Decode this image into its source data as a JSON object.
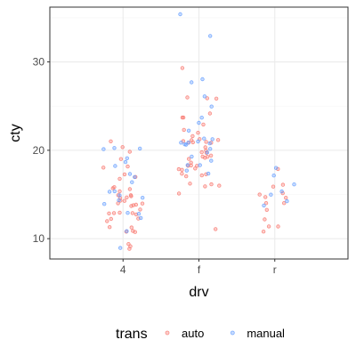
{
  "chart_data": {
    "type": "scatter",
    "jitter": true,
    "xlabel": "drv",
    "ylabel": "cty",
    "categories": [
      "4",
      "f",
      "r"
    ],
    "ylim": [
      7.7,
      36.2
    ],
    "yticks": [
      10,
      20,
      30
    ],
    "grid": true,
    "legend": {
      "title": "trans",
      "placement": "bottom"
    },
    "series": [
      {
        "name": "auto",
        "color": "#F8766D",
        "points": [
          {
            "x": "4",
            "y": 9
          },
          {
            "x": "4",
            "y": 9
          },
          {
            "x": "4",
            "y": 9
          },
          {
            "x": "4",
            "y": 11
          },
          {
            "x": "4",
            "y": 11
          },
          {
            "x": "4",
            "y": 11
          },
          {
            "x": "4",
            "y": 11
          },
          {
            "x": "4",
            "y": 11
          },
          {
            "x": "4",
            "y": 12
          },
          {
            "x": "4",
            "y": 12
          },
          {
            "x": "4",
            "y": 12
          },
          {
            "x": "4",
            "y": 13
          },
          {
            "x": "4",
            "y": 13
          },
          {
            "x": "4",
            "y": 13
          },
          {
            "x": "4",
            "y": 13
          },
          {
            "x": "4",
            "y": 13
          },
          {
            "x": "4",
            "y": 13
          },
          {
            "x": "4",
            "y": 14
          },
          {
            "x": "4",
            "y": 14
          },
          {
            "x": "4",
            "y": 14
          },
          {
            "x": "4",
            "y": 14
          },
          {
            "x": "4",
            "y": 14
          },
          {
            "x": "4",
            "y": 14
          },
          {
            "x": "4",
            "y": 14
          },
          {
            "x": "4",
            "y": 15
          },
          {
            "x": "4",
            "y": 15
          },
          {
            "x": "4",
            "y": 15
          },
          {
            "x": "4",
            "y": 15
          },
          {
            "x": "4",
            "y": 15
          },
          {
            "x": "4",
            "y": 15
          },
          {
            "x": "4",
            "y": 16
          },
          {
            "x": "4",
            "y": 16
          },
          {
            "x": "4",
            "y": 16
          },
          {
            "x": "4",
            "y": 17
          },
          {
            "x": "4",
            "y": 17
          },
          {
            "x": "4",
            "y": 17
          },
          {
            "x": "4",
            "y": 18
          },
          {
            "x": "4",
            "y": 18
          },
          {
            "x": "4",
            "y": 19
          },
          {
            "x": "4",
            "y": 20
          },
          {
            "x": "4",
            "y": 20
          },
          {
            "x": "4",
            "y": 21
          },
          {
            "x": "f",
            "y": 11
          },
          {
            "x": "f",
            "y": 15
          },
          {
            "x": "f",
            "y": 16
          },
          {
            "x": "f",
            "y": 16
          },
          {
            "x": "f",
            "y": 16
          },
          {
            "x": "f",
            "y": 16
          },
          {
            "x": "f",
            "y": 17
          },
          {
            "x": "f",
            "y": 17
          },
          {
            "x": "f",
            "y": 17
          },
          {
            "x": "f",
            "y": 17
          },
          {
            "x": "f",
            "y": 18
          },
          {
            "x": "f",
            "y": 18
          },
          {
            "x": "f",
            "y": 18
          },
          {
            "x": "f",
            "y": 18
          },
          {
            "x": "f",
            "y": 18
          },
          {
            "x": "f",
            "y": 18
          },
          {
            "x": "f",
            "y": 19
          },
          {
            "x": "f",
            "y": 19
          },
          {
            "x": "f",
            "y": 19
          },
          {
            "x": "f",
            "y": 19
          },
          {
            "x": "f",
            "y": 19
          },
          {
            "x": "f",
            "y": 19
          },
          {
            "x": "f",
            "y": 20
          },
          {
            "x": "f",
            "y": 20
          },
          {
            "x": "f",
            "y": 20
          },
          {
            "x": "f",
            "y": 20
          },
          {
            "x": "f",
            "y": 21
          },
          {
            "x": "f",
            "y": 21
          },
          {
            "x": "f",
            "y": 21
          },
          {
            "x": "f",
            "y": 21
          },
          {
            "x": "f",
            "y": 21
          },
          {
            "x": "f",
            "y": 21
          },
          {
            "x": "f",
            "y": 21
          },
          {
            "x": "f",
            "y": 21
          },
          {
            "x": "f",
            "y": 22
          },
          {
            "x": "f",
            "y": 22
          },
          {
            "x": "f",
            "y": 22
          },
          {
            "x": "f",
            "y": 23
          },
          {
            "x": "f",
            "y": 24
          },
          {
            "x": "f",
            "y": 24
          },
          {
            "x": "f",
            "y": 24
          },
          {
            "x": "f",
            "y": 26
          },
          {
            "x": "f",
            "y": 26
          },
          {
            "x": "f",
            "y": 26
          },
          {
            "x": "f",
            "y": 29
          },
          {
            "x": "r",
            "y": 11
          },
          {
            "x": "r",
            "y": 11
          },
          {
            "x": "r",
            "y": 11
          },
          {
            "x": "r",
            "y": 12
          },
          {
            "x": "r",
            "y": 13
          },
          {
            "x": "r",
            "y": 14
          },
          {
            "x": "r",
            "y": 14
          },
          {
            "x": "r",
            "y": 15
          },
          {
            "x": "r",
            "y": 15
          },
          {
            "x": "r",
            "y": 15
          },
          {
            "x": "r",
            "y": 15
          },
          {
            "x": "r",
            "y": 16
          },
          {
            "x": "r",
            "y": 16
          },
          {
            "x": "r",
            "y": 18
          }
        ]
      },
      {
        "name": "manual",
        "color": "#619CFF",
        "points": [
          {
            "x": "4",
            "y": 9
          },
          {
            "x": "4",
            "y": 11
          },
          {
            "x": "4",
            "y": 12
          },
          {
            "x": "4",
            "y": 13
          },
          {
            "x": "4",
            "y": 13
          },
          {
            "x": "4",
            "y": 14
          },
          {
            "x": "4",
            "y": 14
          },
          {
            "x": "4",
            "y": 15
          },
          {
            "x": "4",
            "y": 15
          },
          {
            "x": "4",
            "y": 15
          },
          {
            "x": "4",
            "y": 15
          },
          {
            "x": "4",
            "y": 16
          },
          {
            "x": "4",
            "y": 17
          },
          {
            "x": "4",
            "y": 17
          },
          {
            "x": "4",
            "y": 18
          },
          {
            "x": "4",
            "y": 19
          },
          {
            "x": "4",
            "y": 19
          },
          {
            "x": "4",
            "y": 20
          },
          {
            "x": "4",
            "y": 20
          },
          {
            "x": "4",
            "y": 20
          },
          {
            "x": "f",
            "y": 17
          },
          {
            "x": "f",
            "y": 18
          },
          {
            "x": "f",
            "y": 18
          },
          {
            "x": "f",
            "y": 18
          },
          {
            "x": "f",
            "y": 19
          },
          {
            "x": "f",
            "y": 19
          },
          {
            "x": "f",
            "y": 20
          },
          {
            "x": "f",
            "y": 20
          },
          {
            "x": "f",
            "y": 21
          },
          {
            "x": "f",
            "y": 21
          },
          {
            "x": "f",
            "y": 21
          },
          {
            "x": "f",
            "y": 21
          },
          {
            "x": "f",
            "y": 21
          },
          {
            "x": "f",
            "y": 21
          },
          {
            "x": "f",
            "y": 21
          },
          {
            "x": "f",
            "y": 21
          },
          {
            "x": "f",
            "y": 22
          },
          {
            "x": "f",
            "y": 23
          },
          {
            "x": "f",
            "y": 24
          },
          {
            "x": "f",
            "y": 25
          },
          {
            "x": "f",
            "y": 26
          },
          {
            "x": "f",
            "y": 28
          },
          {
            "x": "f",
            "y": 28
          },
          {
            "x": "f",
            "y": 33
          },
          {
            "x": "f",
            "y": 35
          },
          {
            "x": "r",
            "y": 14
          },
          {
            "x": "r",
            "y": 14
          },
          {
            "x": "r",
            "y": 15
          },
          {
            "x": "r",
            "y": 15
          },
          {
            "x": "r",
            "y": 16
          },
          {
            "x": "r",
            "y": 17
          },
          {
            "x": "r",
            "y": 18
          }
        ]
      }
    ]
  }
}
